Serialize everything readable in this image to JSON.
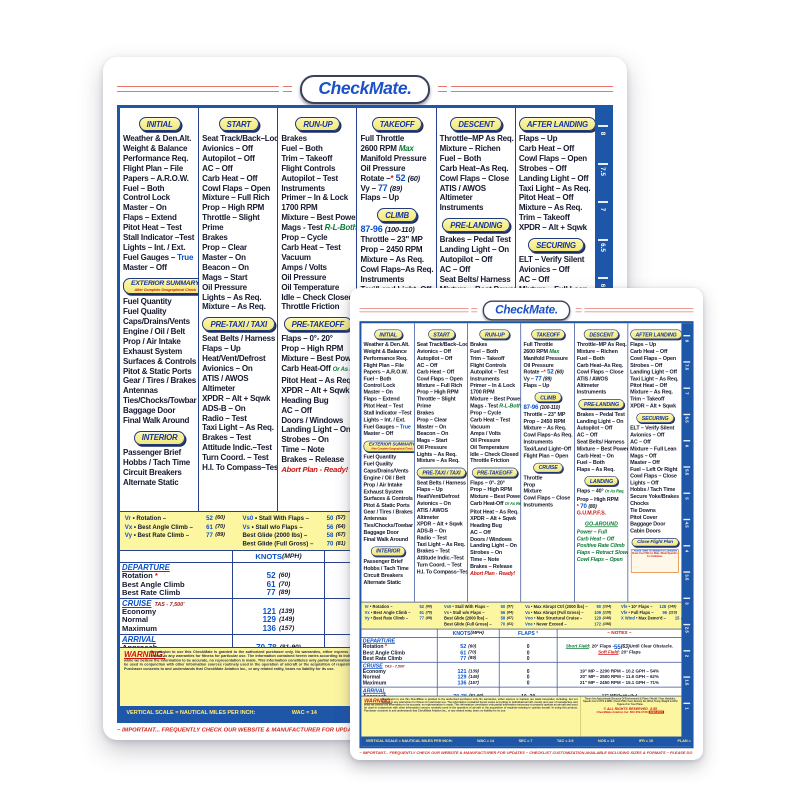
{
  "logo": {
    "text": "CheckMate."
  },
  "ruler": {
    "labels": [
      "8",
      "7.5",
      "7",
      "6.5",
      "6",
      "5.5",
      "5",
      "4.5",
      "4",
      "3.5",
      "3",
      "2.5",
      "2",
      "1.5",
      "1"
    ]
  },
  "columns": [
    {
      "sections": [
        {
          "header": "INITIAL",
          "style": "btn",
          "items": [
            "Weather & Den.Alt.",
            "Weight & Balance",
            "Performance Req.",
            "Flight Plan – File",
            "Papers – A.R.O.W.",
            "Fuel – Both",
            "Control Lock",
            "Master – On",
            "Flaps – Extend",
            "Pitot Heat – Test",
            "Stall Indicator –Test",
            "Lights – Int. / Ext.",
            [
              [
                "Fuel Gauges – "
              ],
              [
                "True",
                "b"
              ]
            ],
            "Master – Off"
          ]
        },
        {
          "header": "EXTERIOR SUMMARY",
          "style": "btn",
          "sub": "After Complete Geographical Check",
          "items": [
            "Fuel Quantity",
            "Fuel Quality",
            "Caps/Drains/Vents",
            "Engine / Oil / Belt",
            "Prop / Air Intake",
            "Exhaust System",
            "Surfaces & Controls",
            "Pitot & Static Ports",
            "Gear / Tires / Brakes",
            "Antennas",
            "Ties/Chocks/Towbar",
            "Baggage Door",
            "Final Walk Around"
          ]
        },
        {
          "header": "INTERIOR",
          "style": "btn",
          "items": [
            "Passenger Brief",
            "Hobbs / Tach Time",
            "Circuit Breakers",
            "Alternate Static"
          ]
        }
      ]
    },
    {
      "sections": [
        {
          "header": "START",
          "style": "btn",
          "items": [
            "Seat Track/Back–Lock",
            "Avionics – Off",
            "Autopilot – Off",
            "AC – Off",
            "Carb Heat – Off",
            "Cowl Flaps – Open",
            "Mixture – Full Rich",
            "Prop – High RPM",
            "Throttle – Slight",
            "Prime",
            "Brakes",
            "Prop – Clear",
            "Master – On",
            "Beacon – On",
            "Mags – Start",
            "Oil Pressure",
            "Lights – As Req.",
            "Mixture – As Req."
          ]
        },
        {
          "header": "PRE-TAXI / TAXI",
          "style": "btn",
          "items": [
            "Seat Belts / Harness",
            "Flaps – Up",
            "Heat/Vent/Defrost",
            "Avionics – On",
            "ATIS / AWOS",
            "Altimeter",
            "XPDR – Alt + Sqwk",
            "ADS-B – On",
            "Radio – Test",
            "Taxi Light – As Req.",
            "Brakes – Test",
            "Attitude Indic.–Test",
            "Turn Coord. – Test",
            "H.I. To Compass–Test"
          ]
        }
      ]
    },
    {
      "sections": [
        {
          "header": "RUN-UP",
          "style": "btn",
          "items": [
            "Brakes",
            "Fuel – Both",
            "Trim – Takeoff",
            "Flight Controls",
            "Autopilot – Test",
            "Instruments",
            "Primer – In & Lock",
            "1700 RPM",
            "Mixture – Best Power",
            [
              [
                "Mags - Test "
              ],
              [
                "R-L-Both",
                "g"
              ]
            ],
            "Prop – Cycle",
            "Carb Heat – Test",
            "Vacuum",
            "Amps / Volts",
            "Oil Pressure",
            "Oil Temperature",
            "Idle – Check Closed",
            "Throttle Friction"
          ]
        },
        {
          "header": "PRE-TAKEOFF",
          "style": "btn",
          "items": [
            "Flaps – 0°- 20°",
            "Prop – High RPM",
            "Mixture – Best Power",
            [
              [
                "Carb Heat-Off "
              ],
              [
                "Or As Req",
                "gs"
              ]
            ],
            "Pitot Heat – As Req.",
            "XPDR – Alt + Sqwk",
            "Heading Bug",
            "AC – Off",
            "Doors / Windows",
            "Landing Light – On",
            "Strobes – On",
            "Time – Note",
            "Brakes – Release",
            [
              [
                "Abort Plan - Ready!",
                "ri"
              ]
            ]
          ]
        }
      ]
    },
    {
      "sections": [
        {
          "header": "TAKEOFF",
          "style": "btn",
          "items": [
            "Full Throttle",
            [
              [
                "2600 RPM   "
              ],
              [
                "Max",
                "g"
              ]
            ],
            "Manifold Pressure",
            "Oil Pressure",
            [
              [
                "Rotate –"
              ],
              [
                "*",
                "r"
              ],
              [
                " 52 ",
                "bb"
              ],
              [
                "(60)",
                "i"
              ]
            ],
            [
              [
                "Vy – "
              ],
              [
                "77 ",
                "bb"
              ],
              [
                "(89)",
                "i"
              ]
            ],
            "Flaps – Up"
          ]
        },
        {
          "header": "CLIMB",
          "style": "btn",
          "items": [
            [
              [
                "87-96 ",
                "bb"
              ],
              [
                "(100-110)",
                "i"
              ]
            ],
            "Throttle – 23\" MP",
            "Prop – 2450 RPM",
            "Mixture – As Req.",
            "Cowl Flaps–As Req.",
            "Instruments",
            "Taxi/Land Light–Off",
            "Flight Plan – Open"
          ]
        },
        {
          "header": "CRUISE",
          "style": "btn",
          "items": [
            "Throttle",
            "Prop",
            "Mixture",
            "Cowl Flaps – Close",
            "Instruments"
          ]
        }
      ]
    },
    {
      "sections": [
        {
          "header": "DESCENT",
          "style": "btn",
          "items": [
            "Throttle–MP As Req.",
            "Mixture – Richen",
            "Fuel – Both",
            "Carb Heat–As Req.",
            "Cowl Flaps – Close",
            "ATIS / AWOS",
            "Altimeter",
            "Instruments"
          ]
        },
        {
          "header": "PRE-LANDING",
          "style": "btn",
          "items": [
            "Brakes – Pedal Test",
            "Landing Light – On",
            "Autopilot – Off",
            "AC – Off",
            "Seat Belts/ Harness",
            "Mixture – Best Power",
            "Carb Heat – On",
            "Fuel – Both",
            "Flaps – As Req."
          ]
        },
        {
          "header": "LANDING",
          "style": "btn",
          "items": [
            [
              [
                "Flaps – 40° "
              ],
              [
                "Or As Req.",
                "gs"
              ]
            ],
            "Prop – High RPM",
            [
              [
                "*",
                "r"
              ],
              [
                " 70 ",
                "bb"
              ],
              [
                "(80)",
                "i"
              ]
            ],
            [
              [
                "G.U.M.P.F.S.",
                "r"
              ]
            ]
          ]
        },
        {
          "header": "GO-AROUND",
          "style": "green",
          "items": [
            [
              [
                "Power – Full",
                "g"
              ]
            ],
            [
              [
                "Carb Heat – Off",
                "g"
              ]
            ],
            [
              [
                "Positive Rate Climb",
                "g"
              ]
            ],
            [
              [
                "Flaps – Retract Slowly",
                "g"
              ]
            ],
            [
              [
                "Cowl Flaps – Open",
                "g"
              ]
            ]
          ]
        }
      ]
    },
    {
      "sections": [
        {
          "header": "AFTER LANDING",
          "style": "btn",
          "items": [
            "Flaps – Up",
            "Carb Heat – Off",
            "Cowl Flaps – Open",
            "Strobes – Off",
            "Landing Light – Off",
            "Taxi Light – As Req.",
            "Pitot Heat – Off",
            "Mixture – As Req.",
            "Trim – Takeoff",
            "XPDR – Alt + Sqwk"
          ]
        },
        {
          "header": "SECURING",
          "style": "btn",
          "items": [
            "ELT – Verify Silent",
            "Avionics – Off",
            "AC – Off",
            "Mixture – Full Lean",
            "Mags – Off",
            "Master – Off",
            "Fuel – Left Or Right",
            "Cowl Flaps – Close",
            "Lights – Off",
            "Hobbs / Tach Time",
            "Secure Yoke/Brakes",
            "Chocks",
            "Tie Downs",
            "Pitot Cover",
            "Baggage Door",
            "Cabin Doors"
          ]
        },
        {
          "header": "Close Flight Plan",
          "style": "btn",
          "small": true,
          "notice": [
            [
              "* Advise Tower As Needed For Conditions",
              "nb"
            ],
            [
              "Check Your POH For Make / Model Specifics For Guidelines",
              "nr"
            ]
          ]
        }
      ]
    }
  ],
  "vband": {
    "groups": [
      [
        {
          "c": "Vr",
          "l": "Rotation –",
          "v": "52",
          "p": "(60)"
        },
        {
          "c": "Vx",
          "l": "Best Angle Climb –",
          "v": "61",
          "p": "(70)"
        },
        {
          "c": "Vy",
          "l": "Best Rate Climb –",
          "v": "77",
          "p": "(89)"
        }
      ],
      [
        {
          "c": "Vs0",
          "l": "Stall With Flaps –",
          "v": "50",
          "p": "(57)"
        },
        {
          "c": "Vs",
          "l": "Stall w/o Flaps –",
          "v": "56",
          "p": "(64)"
        },
        {
          "c": "",
          "l": "Best Glide (2000 lbs) –",
          "v": "58",
          "p": "(67)"
        },
        {
          "c": "",
          "l": "Best Glide (Full Gross) –",
          "v": "70",
          "p": "(81)"
        }
      ],
      [
        {
          "c": "Va",
          "l": "Max Abrupt Ctrl (2000 lbs) –",
          "v": "90",
          "p": "(104)"
        },
        {
          "c": "Va",
          "l": "Max Abrupt (Full Gross) –",
          "v": "109",
          "p": "(126)"
        },
        {
          "c": "Vno",
          "l": "Max Structural Cruise –",
          "v": "129",
          "p": "(148)"
        },
        {
          "c": "Vne",
          "l": "Never Exceed –",
          "v": "172",
          "p": "(198)"
        }
      ],
      [
        {
          "c": "Vfe",
          "l": "10° Flaps –",
          "v": "128",
          "p": "(148)"
        },
        {
          "c": "Vfe",
          "l": "Full Flaps –",
          "v": "96",
          "p": "(110)"
        },
        {
          "c": "X Wind",
          "l": "Max Demo'd –",
          "v": "15",
          "p": "(17)"
        }
      ]
    ]
  },
  "table": {
    "headers": {
      "knots": "KNOTS",
      "mph": "(MPH)",
      "flaps": "FLAPS °",
      "notes": "– NOTES –"
    },
    "groups": [
      {
        "name": "DEPARTURE",
        "tas": "",
        "rows": [
          {
            "label": "Rotation",
            "star": "*",
            "v": "52",
            "p": "(60)",
            "f": "0",
            "notes": [
              [
                "Short Field",
                "gu"
              ],
              [
                ": 20° Flaps - ",
                "n"
              ],
              [
                "55 ",
                "bb"
              ],
              [
                "(63)",
                "i"
              ],
              [
                " Until Clear Obstacle.",
                "n"
              ]
            ]
          },
          {
            "label": "Best Angle Climb",
            "star": "",
            "v": "61",
            "p": "(70)",
            "f": "0",
            "notes": [
              [
                "Soft Field",
                "ru"
              ],
              [
                ": 20° Flaps",
                "n"
              ]
            ]
          },
          {
            "label": "Best Rate Climb",
            "star": "",
            "v": "77",
            "p": "(89)",
            "f": "0",
            "notes": []
          }
        ]
      },
      {
        "name": "CRUISE",
        "tas": "TAS - 7,500'",
        "rows": [
          {
            "label": "Economy",
            "star": "",
            "v": "121",
            "p": "(139)",
            "f": "0",
            "notes": [
              [
                "19\" MP – 2200 RPM – 10.2 GPH – 54%",
                "n"
              ]
            ]
          },
          {
            "label": "Normal",
            "star": "",
            "v": "129",
            "p": "(149)",
            "f": "0",
            "notes": [
              [
                "20\" MP – 2500 RPM – 11.6 GPH – 62%",
                "n"
              ]
            ]
          },
          {
            "label": "Maximum",
            "star": "",
            "v": "136",
            "p": "(157)",
            "f": "0",
            "notes": [
              [
                "21\" MP – 2450 RPM – 15.1 GPH – 71%",
                "n"
              ]
            ]
          }
        ]
      },
      {
        "name": "ARRIVAL",
        "tas": "",
        "rows": [
          {
            "label": "Approach",
            "star": "",
            "v": "70-78",
            "p": "(81-90)",
            "f": "10 -20",
            "notes": [
              [
                "17\" MP ",
                "n"
              ],
              [
                "(Initially)",
                "i"
              ]
            ]
          },
          {
            "label": "Short Final",
            "star": "*",
            "v": "61-70",
            "p": "(70-81)",
            "f": "30-40",
            "notes": [
              [
                "Prop – High RPM",
                "n"
              ]
            ]
          }
        ]
      }
    ]
  },
  "warning": {
    "title": "WARNING:",
    "body": "Permission to use this CheckMate is granted to the authorized purchaser only. No warranties, either express or implied, are made hereunder, including, but not limited to any warranties for fitness for particular use. The information contained herein varies according to individual aircraft, model, and year of manufacture and while we believe the information to be accurate, no representation is made. This information constitutes only partial information necessary to properly operate an aircraft and must be used in conjunction with other information sources routinely used in the operation of aircraft or the acquisition of requisite training to operate aircraft. In using this product, Purchaser consents to and understands that CheckMate Aviation Inc., or any related entity, bears no liability for its use.",
    "side_note": "Times Are Approximate Because Of Environment & Plane / Model / Year Variables. Speeds Are In KTS & MPH. Check POH, Fuel, Density Alt, Wind, Temp, Weight & GPH Figures For Your Plane.",
    "rights": "© ALL RIGHTS RESERVED",
    "version": "8.55",
    "company": "CheckMate Aviation Inc: 800-359-0748",
    "years": "1992-2015"
  },
  "footer": {
    "bar": [
      "VERTICAL SCALE = NAUTICAL MILES PER INCH:",
      "WAC = 14",
      "SEC = 7",
      "TAC = 3.5",
      "NOS = 13",
      "IFR = 15",
      "PLAN = 15"
    ],
    "notice": "~ IMPORTANT... FREQUENTLY CHECK OUR WEBSITE & MANUFACTURER FOR UPDATES ~ CHECKLIST CUSTOMIZATION AVAILABLE INCLUDING SIZES & FORMATS ~ PLEASE DO NOT COPY ~"
  }
}
